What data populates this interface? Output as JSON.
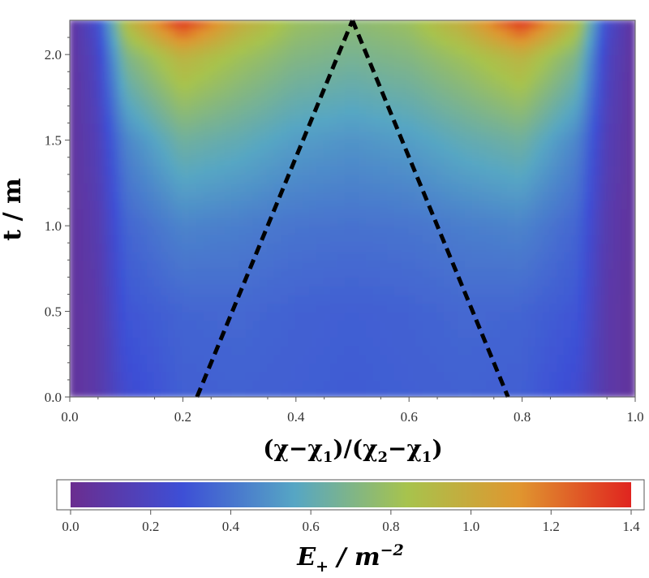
{
  "chart_data": [
    {
      "type": "heatmap",
      "title": "",
      "xlabel": {
        "text": "(χ−χ1)/(χ2−χ1)",
        "parts": [
          "(χ−χ",
          "1",
          ")/(χ",
          "2",
          "−χ",
          "1",
          ")"
        ]
      },
      "ylabel": "t / m",
      "xlim": [
        0,
        1
      ],
      "ylim": [
        0,
        2.2
      ],
      "x_ticks": [
        "0.0",
        "0.2",
        "0.4",
        "0.6",
        "0.8",
        "1.0"
      ],
      "y_ticks": [
        "0.0",
        "0.5",
        "1.0",
        "1.5",
        "2.0"
      ],
      "x": [
        0.0,
        0.05,
        0.1,
        0.2,
        0.3,
        0.4,
        0.5,
        0.6,
        0.7,
        0.8,
        0.9,
        0.95,
        1.0
      ],
      "y": [
        0.0,
        0.5,
        1.0,
        1.5,
        2.0,
        2.2
      ],
      "z": [
        [
          0.05,
          0.1,
          0.25,
          0.33,
          0.34,
          0.33,
          0.32,
          0.33,
          0.34,
          0.33,
          0.25,
          0.1,
          0.05
        ],
        [
          0.05,
          0.1,
          0.3,
          0.35,
          0.36,
          0.34,
          0.33,
          0.34,
          0.36,
          0.35,
          0.3,
          0.1,
          0.05
        ],
        [
          0.05,
          0.12,
          0.35,
          0.45,
          0.43,
          0.4,
          0.39,
          0.4,
          0.43,
          0.45,
          0.35,
          0.12,
          0.05
        ],
        [
          0.05,
          0.15,
          0.45,
          0.65,
          0.6,
          0.53,
          0.5,
          0.53,
          0.6,
          0.65,
          0.45,
          0.15,
          0.05
        ],
        [
          0.05,
          0.2,
          0.7,
          0.95,
          0.82,
          0.72,
          0.68,
          0.72,
          0.82,
          0.95,
          0.7,
          0.2,
          0.05
        ],
        [
          0.05,
          0.25,
          0.9,
          1.38,
          1.0,
          0.8,
          0.75,
          0.8,
          1.0,
          1.38,
          0.9,
          0.25,
          0.05
        ]
      ],
      "overlay_lines": [
        {
          "style": "dashed",
          "color": "#000000",
          "x": [
            0.225,
            0.5
          ],
          "y": [
            0.0,
            2.2
          ]
        },
        {
          "style": "dashed",
          "color": "#000000",
          "x": [
            0.5,
            0.775
          ],
          "y": [
            2.2,
            0.0
          ]
        }
      ],
      "colormap": [
        "#6b2d8f",
        "#3d4fd6",
        "#56a6c4",
        "#a7c34d",
        "#e0962f",
        "#e0241f"
      ],
      "grid": false
    },
    {
      "type": "colorbar",
      "label": {
        "main": "E",
        "sub": "+",
        "rest": " / m",
        "sup": "−2"
      },
      "range": [
        0,
        1.4
      ],
      "ticks": [
        "0.0",
        "0.2",
        "0.4",
        "0.6",
        "0.8",
        "1.0",
        "1.2",
        "1.4"
      ]
    }
  ]
}
